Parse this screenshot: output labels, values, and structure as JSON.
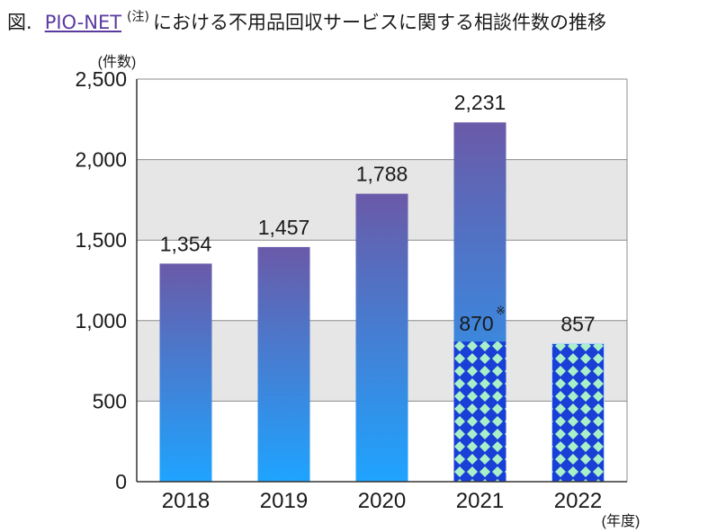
{
  "title": {
    "prefix": "図.",
    "link": "PIO-NET",
    "note_mark": "(注)",
    "rest": "における不用品回収サービスに関する相談件数の推移"
  },
  "chart_data": {
    "type": "bar",
    "categories": [
      "2018",
      "2019",
      "2020",
      "2021",
      "2022"
    ],
    "values": [
      1354,
      1457,
      1788,
      2231,
      857
    ],
    "value_labels": [
      "1,354",
      "1,457",
      "1,788",
      "2,231",
      "857"
    ],
    "series_note": {
      "category": "2021",
      "value": 870,
      "label": "870",
      "mark": "※"
    },
    "ylabel": "(件数)",
    "xlabel": "(年度)",
    "ylim": [
      0,
      2500
    ],
    "yticks": [
      0,
      500,
      1000,
      1500,
      2000,
      2500
    ],
    "ytick_labels": [
      "0",
      "500",
      "1,000",
      "1,500",
      "2,000",
      "2,500"
    ],
    "grid": true,
    "colors": {
      "bar_top": "#6a5aa8",
      "bar_bottom": "#1ea4ff",
      "pattern_bg": "#1a3fd6",
      "pattern_diamond": "#a8f0c8",
      "band_gray": "#e6e6e6"
    }
  }
}
